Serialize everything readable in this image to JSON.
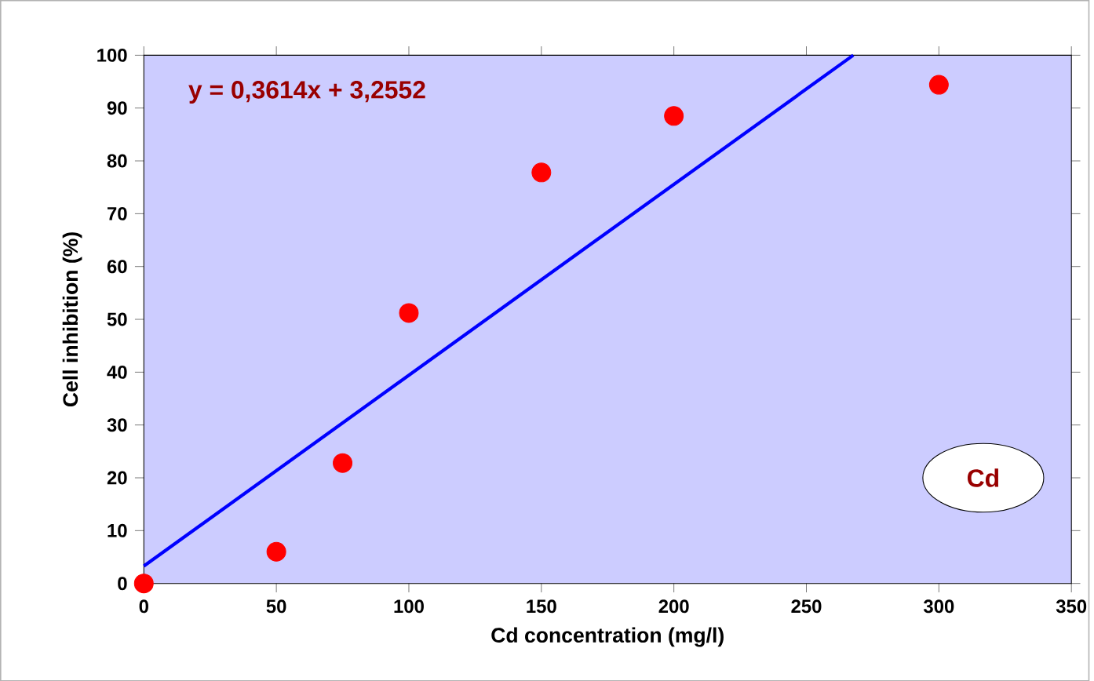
{
  "chart_data": {
    "type": "scatter",
    "xlabel": "Cd concentration (mg/l)",
    "ylabel": "Cell inhibition (%)",
    "xlim": [
      0,
      350
    ],
    "ylim": [
      0,
      100
    ],
    "xticks": [
      0,
      50,
      100,
      150,
      200,
      250,
      300,
      350
    ],
    "yticks": [
      0,
      10,
      20,
      30,
      40,
      50,
      60,
      70,
      80,
      90,
      100
    ],
    "marker": "circle",
    "series": [
      {
        "color": "#ff0000",
        "x": [
          0,
          50,
          75,
          100,
          150,
          200,
          300
        ],
        "values": [
          0,
          6,
          22.8,
          51.2,
          77.8,
          88.5,
          94.4
        ]
      },
      {
        "type": "line",
        "color": "#0000ff",
        "marker": "none",
        "x": [
          0,
          267.7
        ],
        "values": [
          3.3,
          100
        ]
      }
    ],
    "annotations": [
      "y = 0,3614x + 3,2552",
      "Cd"
    ]
  }
}
